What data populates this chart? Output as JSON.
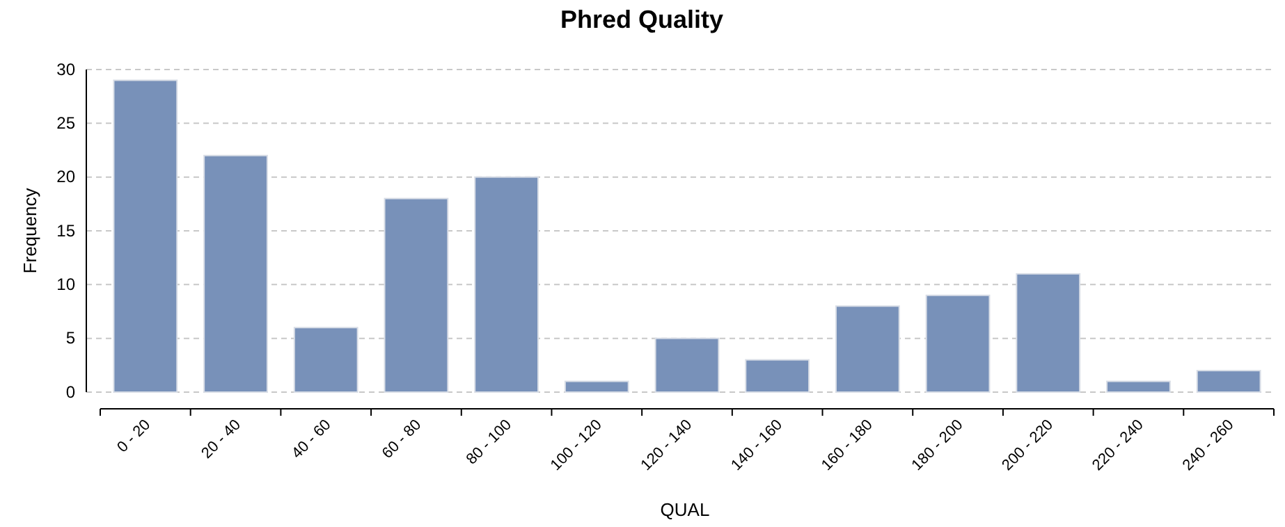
{
  "chart_data": {
    "type": "bar",
    "title": "Phred Quality",
    "xlabel": "QUAL",
    "ylabel": "Frequency",
    "categories": [
      "0 - 20",
      "20 - 40",
      "40 - 60",
      "60 - 80",
      "80 - 100",
      "100 - 120",
      "120 - 140",
      "140 - 160",
      "160 - 180",
      "180 - 200",
      "200 - 220",
      "220 - 240",
      "240 - 260"
    ],
    "values": [
      29,
      22,
      6,
      18,
      20,
      1,
      5,
      3,
      8,
      9,
      11,
      1,
      2
    ],
    "color": "#7891b9",
    "ylim": [
      0,
      30
    ],
    "yticks": [
      0,
      5,
      10,
      15,
      20,
      25,
      30
    ],
    "grid": "y"
  }
}
